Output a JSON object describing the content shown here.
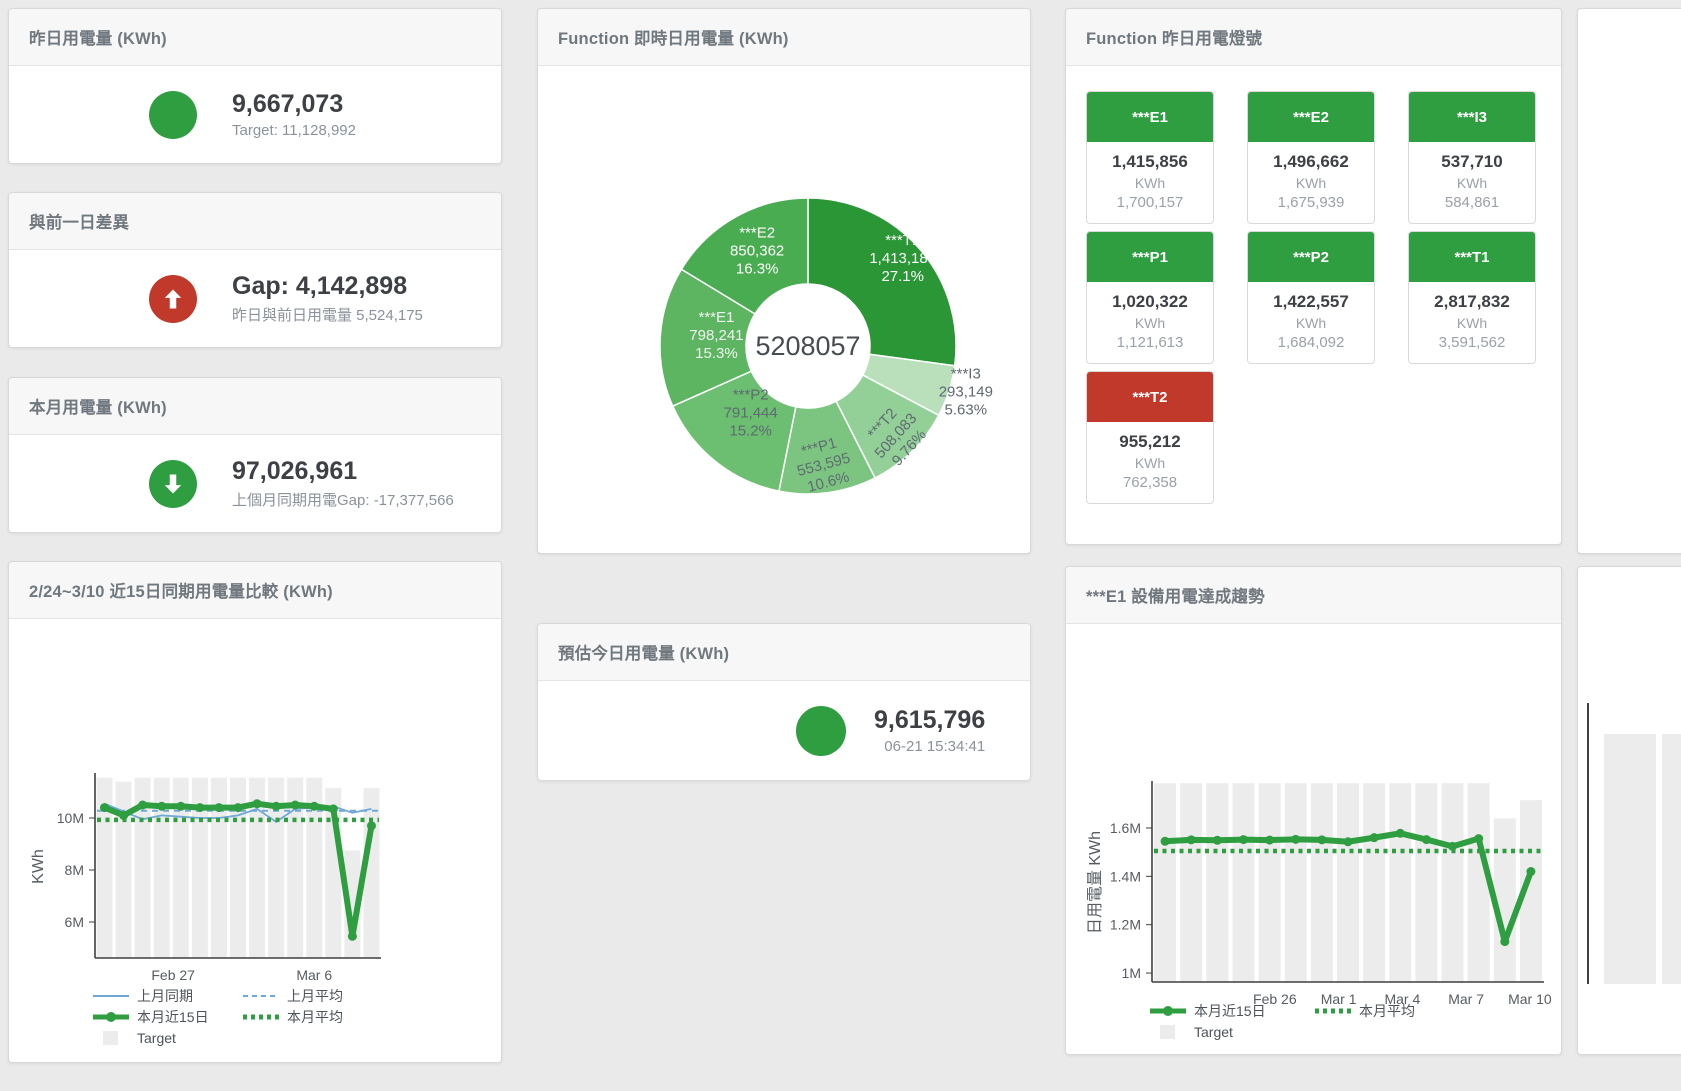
{
  "colors": {
    "green": "#2e9e40",
    "red": "#c0392b",
    "blue": "#6fa8d6",
    "bar": "#ececec"
  },
  "cards": {
    "yesterday": {
      "title": "昨日用電量 (KWh)",
      "value": "9,667,073",
      "sub": "Target: 11,128,992"
    },
    "day_gap": {
      "title": "與前一日差異",
      "value": "Gap: 4,142,898",
      "sub": "昨日與前日用電量 5,524,175"
    },
    "month": {
      "title": "本月用電量 (KWh)",
      "value": "97,026,961",
      "sub": "上個月同期用電Gap: -17,377,566"
    },
    "compare": {
      "title": "2/24~3/10 近15日同期用電量比較 (KWh)"
    },
    "donut": {
      "title": "Function 即時日用電量 (KWh)"
    },
    "estimate": {
      "title": "預估今日用電量 (KWh)",
      "value": "9,615,796",
      "sub": "06-21 15:34:41"
    },
    "lights": {
      "title": "Function 昨日用電燈號",
      "unit": "KWh",
      "tiles": [
        {
          "label": "***E1",
          "value": "1,415,856",
          "target": "1,700,157",
          "status": "green"
        },
        {
          "label": "***E2",
          "value": "1,496,662",
          "target": "1,675,939",
          "status": "green"
        },
        {
          "label": "***I3",
          "value": "537,710",
          "target": "584,861",
          "status": "green"
        },
        {
          "label": "***P1",
          "value": "1,020,322",
          "target": "1,121,613",
          "status": "green"
        },
        {
          "label": "***P2",
          "value": "1,422,557",
          "target": "1,684,092",
          "status": "green"
        },
        {
          "label": "***T1",
          "value": "2,817,832",
          "target": "3,591,562",
          "status": "green"
        },
        {
          "label": "***T2",
          "value": "955,212",
          "target": "762,358",
          "status": "red"
        }
      ]
    },
    "trend": {
      "title": "***E1 設備用電達成趨勢"
    }
  },
  "chart_data": [
    {
      "id": "donut",
      "type": "pie",
      "title": "Function 即時日用電量 (KWh)",
      "center_total": "5208057",
      "slices": [
        {
          "name": "***T1",
          "value": 1413183,
          "value_label": "1,413,183",
          "pct": "27.1%",
          "color": "#2a9635",
          "label_color": "#ffffff",
          "label_r": 0.85
        },
        {
          "name": "***I3",
          "value": 293149,
          "value_label": "293,149",
          "pct": "5.63%",
          "color": "#b9e0bb",
          "label_color": "#5f6a72",
          "label_r": 1.12,
          "outside": true
        },
        {
          "name": "***T2",
          "value": 508083,
          "value_label": "508,083",
          "pct": "9.76%",
          "color": "#93d097",
          "label_color": "#5f6a72",
          "label_r": 0.88,
          "rotate": -48
        },
        {
          "name": "***P1",
          "value": 553595,
          "value_label": "553,595",
          "pct": "10.6%",
          "color": "#7cc580",
          "label_color": "#5f6a72",
          "label_r": 0.84,
          "rotate": -15
        },
        {
          "name": "***P2",
          "value": 791444,
          "value_label": "791,444",
          "pct": "15.2%",
          "color": "#6cbe70",
          "label_color": "#5f6a72",
          "label_r": 0.62
        },
        {
          "name": "***E1",
          "value": 798241,
          "value_label": "798,241",
          "pct": "15.3%",
          "color": "#5db562",
          "label_color": "#f0f6f0",
          "label_r": 0.62
        },
        {
          "name": "***E2",
          "value": 850362,
          "value_label": "850,362",
          "pct": "16.3%",
          "color": "#49ac50",
          "label_color": "#ffffff",
          "label_r": 0.7
        }
      ]
    },
    {
      "id": "compare",
      "type": "line",
      "title": "2/24~3/10 近15日同期用電量比較 (KWh)",
      "ylabel": "KWh",
      "n": 15,
      "ylim": [
        4.615,
        11.654
      ],
      "yticks": [
        {
          "v": 6,
          "label": "6M"
        },
        {
          "v": 8,
          "label": "8M"
        },
        {
          "v": 10,
          "label": "10M"
        }
      ],
      "xticks": [
        {
          "i": 3.6,
          "label": "Feb 27"
        },
        {
          "i": 11.0,
          "label": "Mar 6"
        }
      ],
      "target_bars": [
        11.55,
        11.4,
        11.55,
        11.55,
        11.55,
        11.55,
        11.55,
        11.55,
        11.55,
        11.55,
        11.55,
        11.55,
        11.15,
        8.75,
        11.15
      ],
      "bar_color": "#ececec",
      "series": [
        {
          "name": "上月同期",
          "color": "#6fa8d6",
          "width": 1.8,
          "values": [
            10.55,
            10.25,
            9.95,
            10.1,
            10.05,
            10.0,
            10.0,
            10.1,
            10.35,
            9.85,
            10.35,
            10.4,
            10.45,
            10.2,
            10.35
          ]
        },
        {
          "name": "上月平均",
          "color": "#6fa8d6",
          "width": 2,
          "dash": "6 5",
          "const": 10.28
        },
        {
          "name": "本月平均",
          "color": "#2e9e40",
          "width": 4.5,
          "dash": "4 4.5",
          "const": 9.93
        },
        {
          "name": "本月近15日",
          "color": "#2e9e40",
          "width": 6,
          "dots": true,
          "dot_r": 4.5,
          "values": [
            10.4,
            10.1,
            10.5,
            10.45,
            10.45,
            10.4,
            10.4,
            10.4,
            10.55,
            10.45,
            10.5,
            10.45,
            10.35,
            5.45,
            9.7
          ]
        }
      ],
      "legend": [
        {
          "label": "上月同期",
          "style": "line",
          "color": "#6fa8d6"
        },
        {
          "label": "上月平均",
          "style": "dash",
          "color": "#6fa8d6"
        },
        {
          "label": "本月近15日",
          "style": "thick",
          "color": "#2e9e40"
        },
        {
          "label": "本月平均",
          "style": "dots",
          "color": "#2e9e40"
        },
        {
          "label": "Target",
          "style": "square",
          "color": "#ececec"
        }
      ]
    },
    {
      "id": "trend",
      "type": "line",
      "title": "***E1 設備用電達成趨勢",
      "ylabel": "日用電量 KWh",
      "n": 15,
      "ylim": [
        0.963,
        1.786
      ],
      "yticks": [
        {
          "v": 1,
          "label": "1M"
        },
        {
          "v": 1.2,
          "label": "1.2M"
        },
        {
          "v": 1.4,
          "label": "1.4M"
        },
        {
          "v": 1.6,
          "label": "1.6M"
        }
      ],
      "xticks": [
        {
          "i": 4.2,
          "label": "Feb 26"
        },
        {
          "i": 6.64,
          "label": "Mar 1"
        },
        {
          "i": 9.08,
          "label": "Mar 4"
        },
        {
          "i": 11.52,
          "label": "Mar 7"
        },
        {
          "i": 13.96,
          "label": "Mar 10"
        }
      ],
      "target_bars": [
        1.785,
        1.785,
        1.785,
        1.785,
        1.785,
        1.785,
        1.785,
        1.785,
        1.785,
        1.785,
        1.785,
        1.785,
        1.785,
        1.64,
        1.715
      ],
      "bar_color": "#ececec",
      "series": [
        {
          "name": "本月平均",
          "color": "#2e9e40",
          "width": 4.5,
          "dash": "4 4.5",
          "const": 1.505
        },
        {
          "name": "本月近15日",
          "color": "#2e9e40",
          "width": 6,
          "dots": true,
          "dot_r": 4.5,
          "values": [
            1.545,
            1.551,
            1.549,
            1.552,
            1.55,
            1.553,
            1.551,
            1.543,
            1.56,
            1.578,
            1.552,
            1.524,
            1.556,
            1.13,
            1.42
          ]
        }
      ],
      "legend": [
        {
          "label": "本月近15日",
          "style": "thick",
          "color": "#2e9e40"
        },
        {
          "label": "本月平均",
          "style": "dots",
          "color": "#2e9e40"
        },
        {
          "label": "Target",
          "style": "square",
          "color": "#ececec"
        }
      ]
    }
  ]
}
